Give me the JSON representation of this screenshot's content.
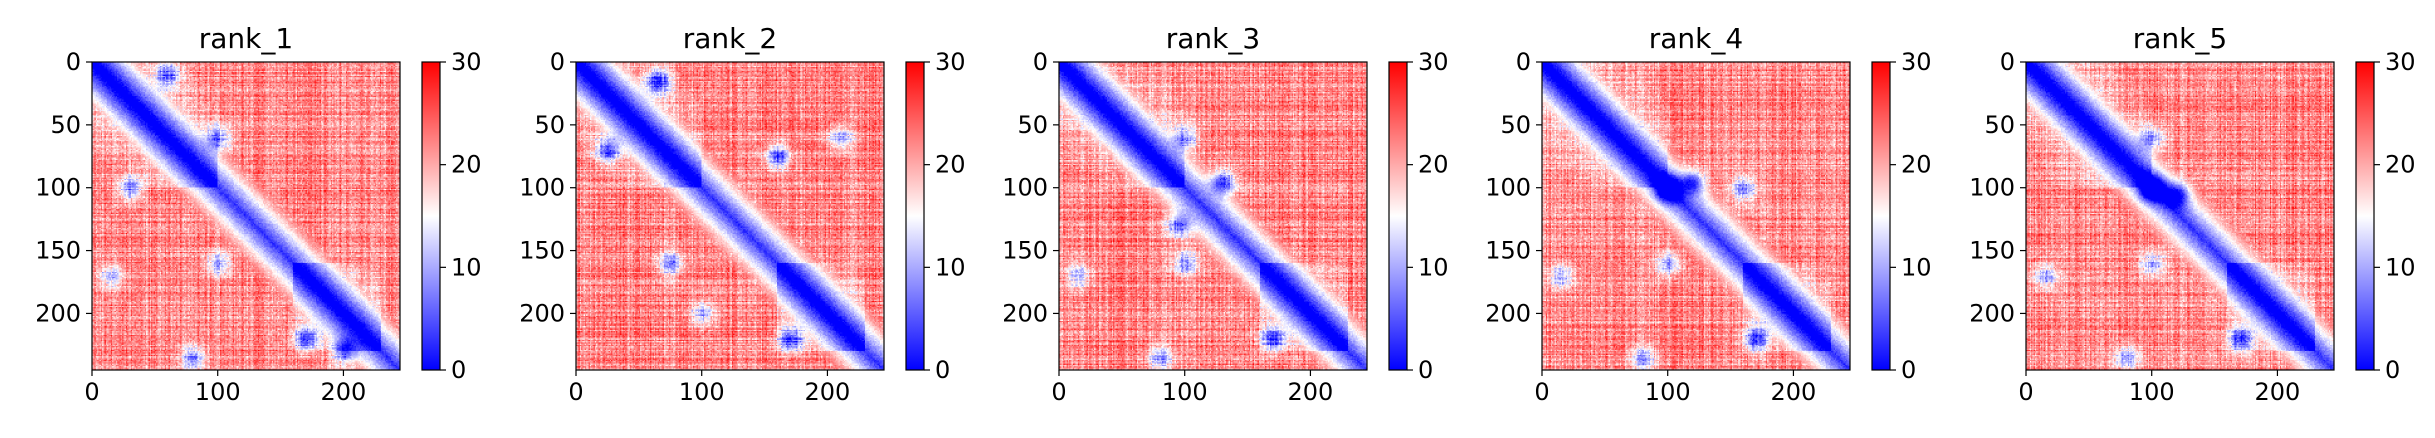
{
  "chart_data": [
    {
      "type": "heatmap",
      "title": "rank_1",
      "matrix_size": 245,
      "xlim": [
        0,
        245
      ],
      "ylim": [
        245,
        0
      ],
      "xticks": [
        0,
        100,
        200
      ],
      "yticks": [
        0,
        50,
        100,
        150,
        200
      ],
      "colorbar": {
        "colormap": "bwr",
        "vmin": 0,
        "vmax": 30,
        "ticks": [
          0,
          10,
          20,
          30
        ]
      },
      "features": {
        "domain_blocks": [
          [
            0,
            100
          ],
          [
            160,
            230
          ]
        ],
        "contact_patches": [
          [
            10,
            60,
            0.6
          ],
          [
            100,
            30,
            0.6
          ],
          [
            220,
            170,
            0.7
          ],
          [
            60,
            100,
            0.55
          ],
          [
            160,
            100,
            0.5
          ],
          [
            235,
            80,
            0.55
          ],
          [
            170,
            15,
            0.45
          ],
          [
            230,
            200,
            0.6
          ]
        ]
      }
    },
    {
      "type": "heatmap",
      "title": "rank_2",
      "matrix_size": 245,
      "xlim": [
        0,
        245
      ],
      "ylim": [
        245,
        0
      ],
      "xticks": [
        0,
        100,
        200
      ],
      "yticks": [
        0,
        50,
        100,
        150,
        200
      ],
      "colorbar": {
        "colormap": "bwr",
        "vmin": 0,
        "vmax": 30,
        "ticks": [
          0,
          10,
          20,
          30
        ]
      },
      "features": {
        "domain_blocks": [
          [
            0,
            100
          ],
          [
            160,
            230
          ]
        ],
        "contact_patches": [
          [
            15,
            65,
            0.75
          ],
          [
            70,
            25,
            0.65
          ],
          [
            75,
            160,
            0.7
          ],
          [
            160,
            75,
            0.55
          ],
          [
            220,
            170,
            0.7
          ],
          [
            200,
            100,
            0.45
          ],
          [
            60,
            210,
            0.5
          ]
        ]
      }
    },
    {
      "type": "heatmap",
      "title": "rank_3",
      "matrix_size": 245,
      "xlim": [
        0,
        245
      ],
      "ylim": [
        245,
        0
      ],
      "xticks": [
        0,
        100,
        200
      ],
      "yticks": [
        0,
        50,
        100,
        150,
        200
      ],
      "colorbar": {
        "colormap": "bwr",
        "vmin": 0,
        "vmax": 30,
        "ticks": [
          0,
          10,
          20,
          30
        ]
      },
      "features": {
        "domain_blocks": [
          [
            0,
            100
          ],
          [
            160,
            230
          ]
        ],
        "contact_patches": [
          [
            95,
            130,
            0.7
          ],
          [
            130,
            95,
            0.6
          ],
          [
            220,
            170,
            0.7
          ],
          [
            60,
            100,
            0.5
          ],
          [
            160,
            100,
            0.5
          ],
          [
            235,
            80,
            0.5
          ],
          [
            170,
            15,
            0.45
          ]
        ]
      }
    },
    {
      "type": "heatmap",
      "title": "rank_4",
      "matrix_size": 245,
      "xlim": [
        0,
        245
      ],
      "ylim": [
        245,
        0
      ],
      "xticks": [
        0,
        100,
        200
      ],
      "yticks": [
        0,
        50,
        100,
        150,
        200
      ],
      "colorbar": {
        "colormap": "bwr",
        "vmin": 0,
        "vmax": 30,
        "ticks": [
          0,
          10,
          20,
          30
        ]
      },
      "features": {
        "domain_blocks": [
          [
            0,
            100
          ],
          [
            160,
            230
          ]
        ],
        "contact_patches": [
          [
            100,
            100,
            0.85
          ],
          [
            95,
            120,
            0.6
          ],
          [
            220,
            170,
            0.7
          ],
          [
            160,
            100,
            0.55
          ],
          [
            100,
            160,
            0.55
          ],
          [
            235,
            80,
            0.5
          ],
          [
            170,
            15,
            0.45
          ]
        ]
      }
    },
    {
      "type": "heatmap",
      "title": "rank_5",
      "matrix_size": 245,
      "xlim": [
        0,
        245
      ],
      "ylim": [
        245,
        0
      ],
      "xticks": [
        0,
        100,
        200
      ],
      "yticks": [
        0,
        50,
        100,
        150,
        200
      ],
      "colorbar": {
        "colormap": "bwr",
        "vmin": 0,
        "vmax": 30,
        "ticks": [
          0,
          10,
          20,
          30
        ]
      },
      "features": {
        "domain_blocks": [
          [
            0,
            100
          ],
          [
            160,
            230
          ]
        ],
        "contact_patches": [
          [
            100,
            100,
            0.85
          ],
          [
            105,
            120,
            0.55
          ],
          [
            220,
            170,
            0.7
          ],
          [
            60,
            100,
            0.5
          ],
          [
            160,
            100,
            0.5
          ],
          [
            235,
            80,
            0.5
          ],
          [
            170,
            15,
            0.45
          ]
        ]
      }
    }
  ],
  "colors": {
    "low": "#0000ff",
    "mid": "#ffffff",
    "high": "#ff0000",
    "axis": "#000000"
  }
}
